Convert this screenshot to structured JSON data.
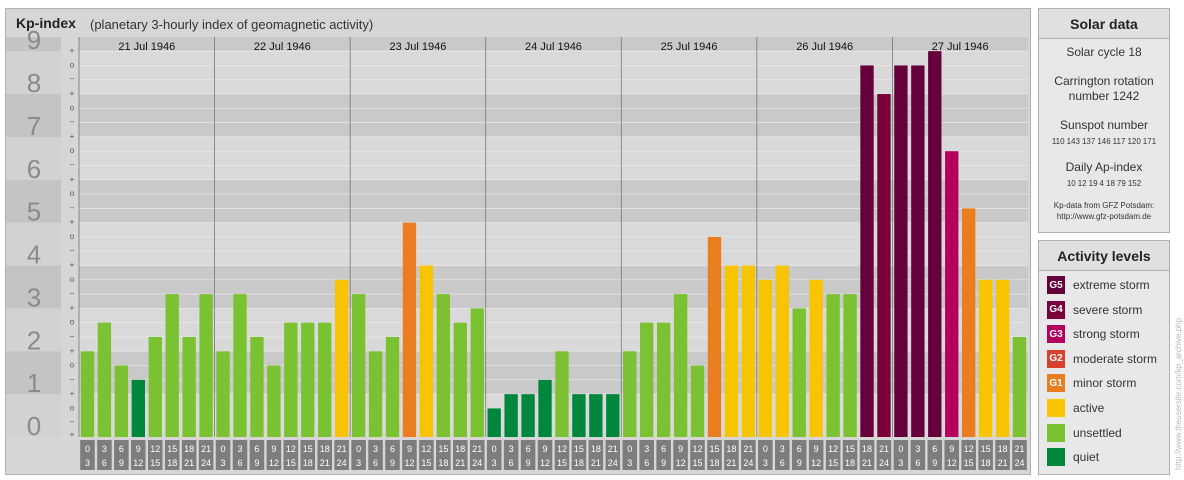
{
  "chart_data": {
    "type": "bar",
    "title": "Kp-index",
    "subtitle": "(planetary 3-hourly index of geomagnetic activity)",
    "y_ticks": [
      "0",
      "1",
      "2",
      "3",
      "4",
      "5",
      "6",
      "7",
      "8",
      "9"
    ],
    "ylim": [
      0,
      9.33
    ],
    "y_minor_labels": [
      "+",
      "−",
      "o"
    ],
    "days": [
      "21 Jul 1946",
      "22 Jul 1946",
      "23 Jul 1946",
      "24 Jul 1946",
      "25 Jul 1946",
      "26 Jul 1946",
      "27 Jul 1946"
    ],
    "hour_labels": [
      [
        "0",
        "3"
      ],
      [
        "3",
        "6"
      ],
      [
        "6",
        "9"
      ],
      [
        "9",
        "12"
      ],
      [
        "12",
        "15"
      ],
      [
        "15",
        "18"
      ],
      [
        "18",
        "21"
      ],
      [
        "21",
        "24"
      ]
    ],
    "values": [
      2.0,
      2.667,
      1.667,
      1.333,
      2.333,
      3.333,
      2.333,
      3.333,
      2.0,
      3.333,
      2.333,
      1.667,
      2.667,
      2.667,
      2.667,
      3.667,
      3.333,
      2.0,
      2.333,
      5.0,
      4.0,
      3.333,
      2.667,
      3.0,
      0.667,
      1.0,
      1.0,
      1.333,
      2.0,
      1.0,
      1.0,
      1.0,
      2.0,
      2.667,
      2.667,
      3.333,
      1.667,
      4.667,
      4.0,
      4.0,
      3.667,
      4.0,
      3.0,
      3.667,
      3.333,
      3.333,
      8.667,
      8.0,
      8.667,
      8.667,
      9.0,
      6.667,
      5.333,
      3.667,
      3.667,
      2.333
    ],
    "levels": [
      {
        "min": 0,
        "max": 1.5,
        "label": "quiet",
        "color": "#00873c"
      },
      {
        "min": 1.5,
        "max": 3.5,
        "label": "unsettled",
        "color": "#7ac231"
      },
      {
        "min": 3.5,
        "max": 4.5,
        "label": "active",
        "color": "#f8c300"
      },
      {
        "min": 4.5,
        "max": 5.5,
        "label": "minor storm",
        "color": "#e97d1f"
      },
      {
        "min": 5.5,
        "max": 6.5,
        "label": "moderate storm",
        "color": "#d6422e"
      },
      {
        "min": 6.5,
        "max": 7.5,
        "label": "strong storm",
        "color": "#b3005d"
      },
      {
        "min": 7.5,
        "max": 8.5,
        "label": "severe storm",
        "color": "#7a003c"
      },
      {
        "min": 8.5,
        "max": 10,
        "label": "extreme storm",
        "color": "#65003a"
      }
    ],
    "grid": true
  },
  "solar": {
    "title": "Solar data",
    "cycle": "Solar cycle 18",
    "carrington_1": "Carrington rotation",
    "carrington_2": "number 1242",
    "sunspot_title": "Sunspot number",
    "sunspot_numbers": [
      "110",
      "143",
      "137",
      "146",
      "117",
      "120",
      "171"
    ],
    "ap_title": "Daily Ap-index",
    "ap_numbers": [
      "10",
      "12",
      "19",
      "4",
      "18",
      "79",
      "152"
    ],
    "source_1": "Kp-data from GFZ Potsdam:",
    "source_2": "http://www.gfz-potsdam.de"
  },
  "activity": {
    "title": "Activity levels",
    "items": [
      {
        "badge": "G5",
        "label": "extreme storm",
        "color": "#65003a"
      },
      {
        "badge": "G4",
        "label": "severe storm",
        "color": "#7a003c"
      },
      {
        "badge": "G3",
        "label": "strong storm",
        "color": "#b3005d"
      },
      {
        "badge": "G2",
        "label": "moderate storm",
        "color": "#d6422e"
      },
      {
        "badge": "G1",
        "label": "minor storm",
        "color": "#e97d1f"
      },
      {
        "badge": "",
        "label": "active",
        "color": "#f8c300"
      },
      {
        "badge": "",
        "label": "unsettled",
        "color": "#7ac231"
      },
      {
        "badge": "",
        "label": "quiet",
        "color": "#00873c"
      }
    ]
  },
  "watermark": "http://www.theusersite.com/kp_archive.php"
}
